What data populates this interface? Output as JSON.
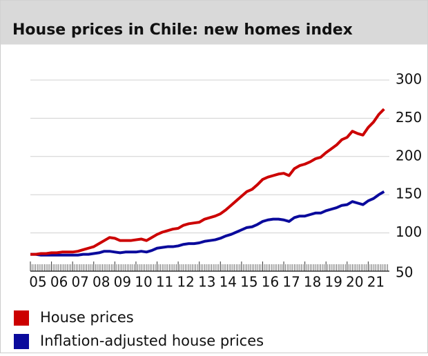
{
  "chart_data": {
    "type": "line",
    "title": "House prices in Chile: new homes index",
    "x": [
      2005,
      2005.25,
      2005.5,
      2005.75,
      2006,
      2006.25,
      2006.5,
      2006.75,
      2007,
      2007.25,
      2007.5,
      2007.75,
      2008,
      2008.25,
      2008.5,
      2008.75,
      2009,
      2009.25,
      2009.5,
      2009.75,
      2010,
      2010.25,
      2010.5,
      2010.75,
      2011,
      2011.25,
      2011.5,
      2011.75,
      2012,
      2012.25,
      2012.5,
      2012.75,
      2013,
      2013.25,
      2013.5,
      2013.75,
      2014,
      2014.25,
      2014.5,
      2014.75,
      2015,
      2015.25,
      2015.5,
      2015.75,
      2016,
      2016.25,
      2016.5,
      2016.75,
      2017,
      2017.25,
      2017.5,
      2017.75,
      2018,
      2018.25,
      2018.5,
      2018.75,
      2019,
      2019.25,
      2019.5,
      2019.75,
      2020,
      2020.25,
      2020.5,
      2020.75,
      2021,
      2021.25,
      2021.5,
      2021.75
    ],
    "series": [
      {
        "name": "House prices",
        "color": "#cc0000",
        "values": [
          72,
          72,
          73,
          73,
          74,
          74,
          75,
          75,
          75,
          76,
          78,
          80,
          82,
          86,
          90,
          94,
          93,
          90,
          90,
          90,
          91,
          92,
          90,
          94,
          98,
          101,
          103,
          105,
          106,
          110,
          112,
          113,
          114,
          118,
          120,
          122,
          125,
          130,
          136,
          142,
          148,
          154,
          157,
          163,
          170,
          173,
          175,
          177,
          178,
          175,
          184,
          188,
          190,
          193,
          197,
          199,
          205,
          210,
          215,
          222,
          225,
          233,
          230,
          228,
          238,
          245,
          255,
          262
        ]
      },
      {
        "name": "Inflation-adjusted house prices",
        "color": "#0a0a9c",
        "values": [
          72,
          72,
          71,
          71,
          71,
          71,
          71,
          71,
          71,
          71,
          72,
          72,
          73,
          74,
          76,
          76,
          75,
          74,
          75,
          75,
          75,
          76,
          75,
          77,
          80,
          81,
          82,
          82,
          83,
          85,
          86,
          86,
          87,
          89,
          90,
          91,
          93,
          96,
          98,
          101,
          104,
          107,
          108,
          111,
          115,
          117,
          118,
          118,
          117,
          115,
          120,
          122,
          122,
          124,
          126,
          126,
          129,
          131,
          133,
          136,
          137,
          141,
          139,
          137,
          142,
          145,
          150,
          154
        ]
      }
    ],
    "xlim": [
      2005,
      2022
    ],
    "xticks": [
      {
        "value": 2005,
        "label": "05"
      },
      {
        "value": 2006,
        "label": "06"
      },
      {
        "value": 2007,
        "label": "07"
      },
      {
        "value": 2008,
        "label": "08"
      },
      {
        "value": 2009,
        "label": "09"
      },
      {
        "value": 2010,
        "label": "10"
      },
      {
        "value": 2011,
        "label": "11"
      },
      {
        "value": 2012,
        "label": "12"
      },
      {
        "value": 2013,
        "label": "13"
      },
      {
        "value": 2014,
        "label": "14"
      },
      {
        "value": 2015,
        "label": "15"
      },
      {
        "value": 2016,
        "label": "16"
      },
      {
        "value": 2017,
        "label": "17"
      },
      {
        "value": 2018,
        "label": "18"
      },
      {
        "value": 2019,
        "label": "19"
      },
      {
        "value": 2020,
        "label": "20"
      },
      {
        "value": 2021,
        "label": "21"
      }
    ],
    "ylim": [
      50,
      300
    ],
    "yticks": [
      50,
      100,
      150,
      200,
      250,
      300
    ],
    "grid": true
  }
}
